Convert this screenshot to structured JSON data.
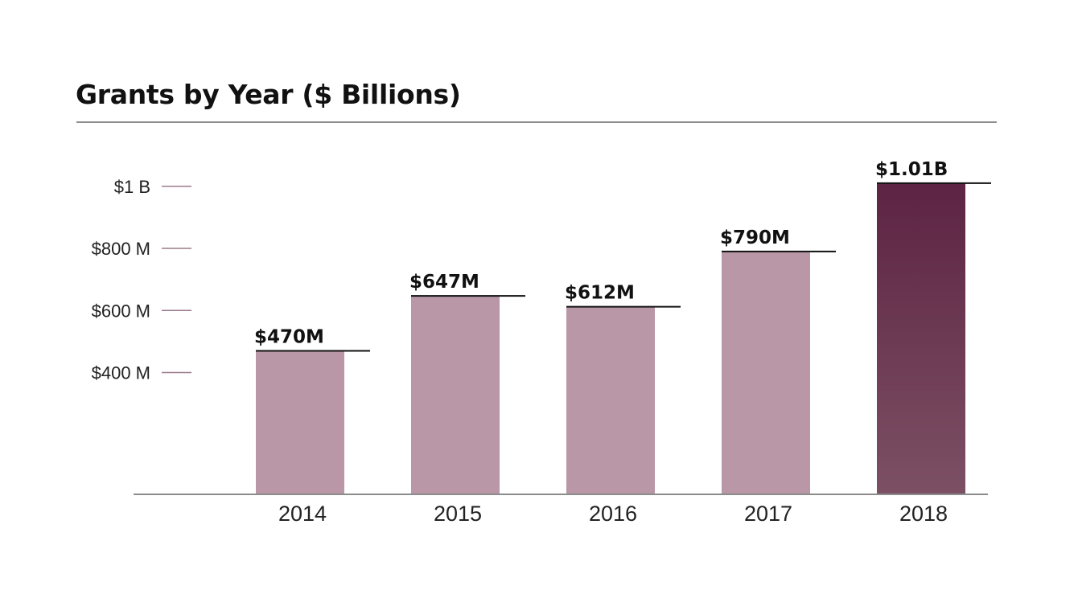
{
  "chart_data": {
    "type": "bar",
    "title": "Grants by Year ($ Billions)",
    "categories": [
      "2014",
      "2015",
      "2016",
      "2017",
      "2018"
    ],
    "values": [
      470,
      647,
      612,
      790,
      1010
    ],
    "value_unit": "millions of dollars",
    "data_labels": [
      "$470M",
      "$647M",
      "$612M",
      "$790M",
      "$1.01B"
    ],
    "yticks": [
      {
        "value": 400,
        "label": "$400 M"
      },
      {
        "value": 600,
        "label": "$600 M"
      },
      {
        "value": 800,
        "label": "$800 M"
      },
      {
        "value": 1000,
        "label": "$1 B"
      }
    ],
    "xlabel": "",
    "ylabel": "",
    "grid": false,
    "legend": "none",
    "colors": {
      "bar": "#b997a7",
      "highlight_top": "#5d2443",
      "highlight_bottom": "#7c5064",
      "tick": "#9b7a8b"
    },
    "highlight_index": 4
  }
}
